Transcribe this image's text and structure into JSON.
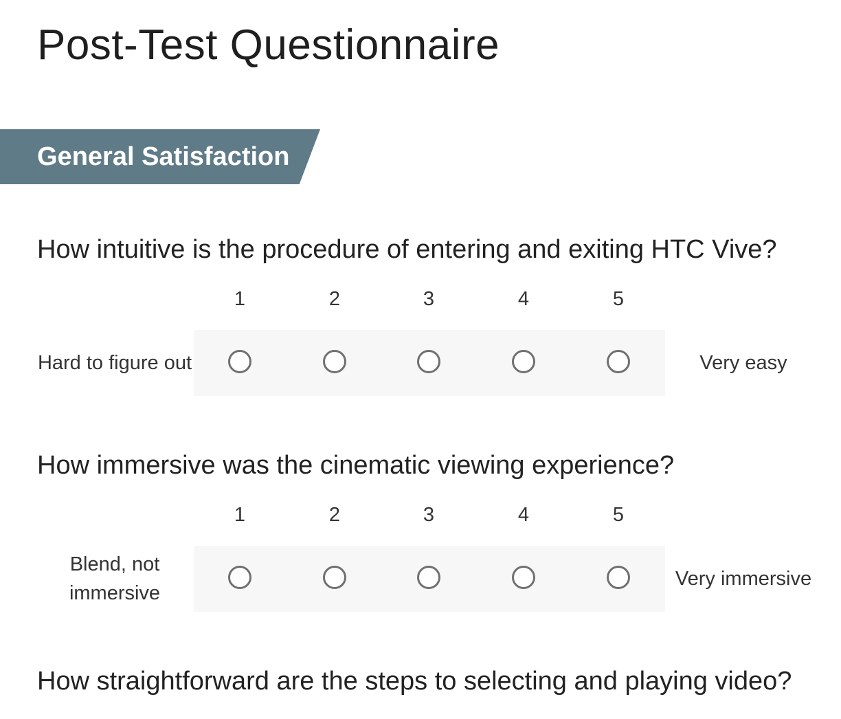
{
  "page": {
    "title": "Post-Test Questionnaire"
  },
  "section": {
    "title": "General Satisfaction",
    "color": "#5f7b88"
  },
  "scale": {
    "points": [
      "1",
      "2",
      "3",
      "4",
      "5"
    ]
  },
  "questions": [
    {
      "text": "How intuitive is the procedure of entering and exiting HTC Vive?",
      "left_anchor": "Hard to figure out",
      "right_anchor": "Very easy",
      "selected": null
    },
    {
      "text": "How immersive was the cinematic viewing experience?",
      "left_anchor": "Blend, not immersive",
      "right_anchor": "Very immersive",
      "selected": null
    },
    {
      "text": "How straightforward are the steps to selecting and playing video?"
    }
  ]
}
